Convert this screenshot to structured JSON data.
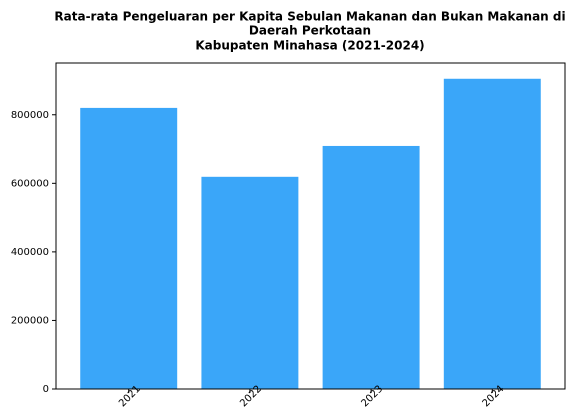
{
  "chart_data": {
    "type": "bar",
    "title": [
      "Rata-rata Pengeluaran per Kapita Sebulan Makanan dan Bukan Makanan di",
      "Daerah Perkotaan",
      "Kabupaten Minahasa (2021-2024)"
    ],
    "categories": [
      "2021",
      "2022",
      "2023",
      "2024"
    ],
    "values": [
      820000,
      619000,
      709000,
      905000
    ],
    "color": "#3aa6f9",
    "ylim": [
      0,
      951000
    ],
    "yticks": [
      0,
      200000,
      400000,
      600000,
      800000
    ],
    "grid": false
  }
}
